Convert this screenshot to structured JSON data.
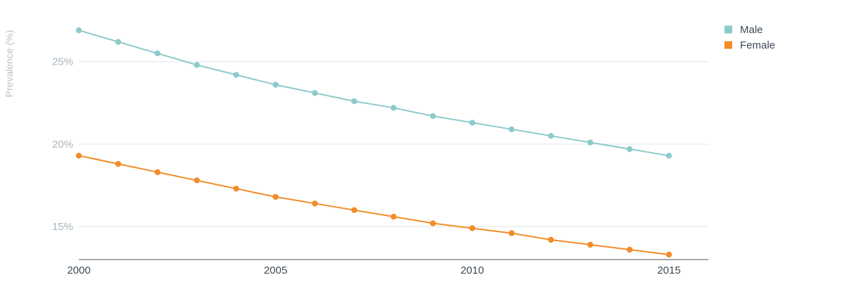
{
  "chart_data": {
    "type": "line",
    "title": "",
    "xlabel": "",
    "ylabel": "Prevalence (%)",
    "x": [
      2000,
      2001,
      2002,
      2003,
      2004,
      2005,
      2006,
      2007,
      2008,
      2009,
      2010,
      2011,
      2012,
      2013,
      2014,
      2015
    ],
    "xlim": [
      2000,
      2016
    ],
    "ylim": [
      13,
      27.8
    ],
    "x_ticks": [
      2000,
      2005,
      2010,
      2015
    ],
    "x_tick_labels": [
      "2000",
      "2005",
      "2010",
      "2015"
    ],
    "y_ticks": [
      15,
      20,
      25
    ],
    "y_tick_labels": [
      "15%",
      "20%",
      "25%"
    ],
    "grid": true,
    "legend_position": "top-right",
    "series": [
      {
        "name": "Male",
        "color": "#8ecaca",
        "values": [
          26.9,
          26.2,
          25.5,
          24.8,
          24.2,
          23.6,
          23.1,
          22.6,
          22.2,
          21.7,
          21.3,
          20.9,
          20.5,
          20.1,
          19.7,
          19.3
        ]
      },
      {
        "name": "Female",
        "color": "#f28c28",
        "values": [
          19.3,
          18.8,
          18.3,
          17.8,
          17.3,
          16.8,
          16.4,
          16.0,
          15.6,
          15.2,
          14.9,
          14.6,
          14.2,
          13.9,
          13.6,
          13.3
        ]
      }
    ]
  }
}
